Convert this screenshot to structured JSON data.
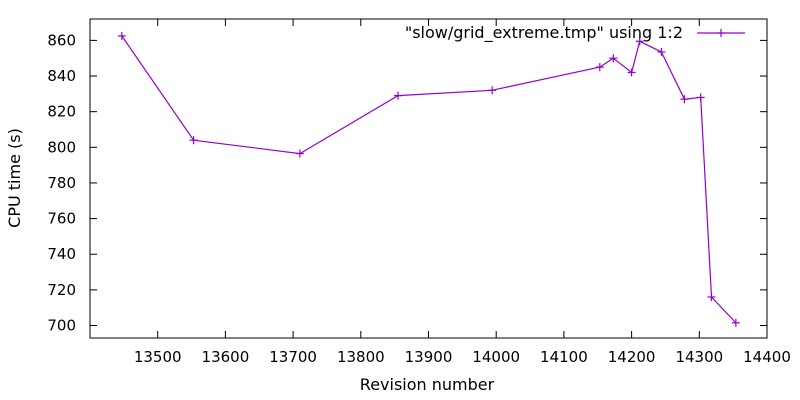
{
  "chart_data": {
    "type": "line",
    "title": "",
    "xlabel": "Revision number",
    "ylabel": "CPU time (s)",
    "xlim": [
      13400,
      14400
    ],
    "ylim": [
      693,
      872
    ],
    "x_ticks": [
      13500,
      13600,
      13700,
      13800,
      13900,
      14000,
      14100,
      14200,
      14300,
      14400
    ],
    "y_ticks": [
      700,
      720,
      740,
      760,
      780,
      800,
      820,
      840,
      860
    ],
    "grid": false,
    "legend_position": "top-right",
    "series": [
      {
        "name": "\"slow/grid_extreme.tmp\" using 1:2",
        "color": "#9400d3",
        "marker": "plus",
        "points": [
          {
            "x": 13447,
            "y": 862.5
          },
          {
            "x": 13553,
            "y": 804
          },
          {
            "x": 13710,
            "y": 796.5
          },
          {
            "x": 13855,
            "y": 829
          },
          {
            "x": 13994,
            "y": 832
          },
          {
            "x": 14153,
            "y": 845
          },
          {
            "x": 14173,
            "y": 850
          },
          {
            "x": 14200,
            "y": 842
          },
          {
            "x": 14212,
            "y": 859.5
          },
          {
            "x": 14244,
            "y": 853.5
          },
          {
            "x": 14278,
            "y": 827
          },
          {
            "x": 14302,
            "y": 828
          },
          {
            "x": 14318,
            "y": 716
          },
          {
            "x": 14354,
            "y": 701.5
          }
        ]
      }
    ]
  }
}
